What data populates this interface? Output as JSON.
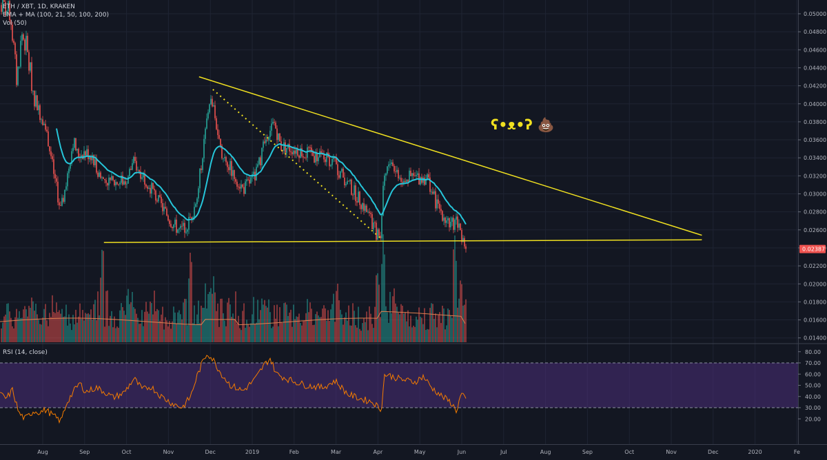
{
  "header": {
    "symbol_line": "ETH / XBT, 1D, KRAKEN",
    "indicator_line": "EMA + MA (100, 21, 50, 100, 200)",
    "volume_line": "Vol (50)"
  },
  "rsi_pane": {
    "label": "RSI (14, close)"
  },
  "annotation": {
    "text": "ʕ•ᴥ•ʔ 💩"
  },
  "colors": {
    "background": "#131722",
    "up": "#26a69a",
    "down": "#ef5350",
    "ema": "#26c6da",
    "trendline": "#f0e020",
    "rsi_line": "#f57c00",
    "rsi_band": "#4a2d78",
    "vol_ma": "#e08050",
    "price_badge": "#ef5350"
  },
  "chart_data": [
    {
      "type": "candlestick",
      "name": "price",
      "price_axis_ticks": [
        "0.05000",
        "0.04800",
        "0.04600",
        "0.04400",
        "0.04200",
        "0.04000",
        "0.03800",
        "0.03600",
        "0.03400",
        "0.03200",
        "0.03000",
        "0.02800",
        "0.02600",
        "0.02400",
        "0.02200",
        "0.02000",
        "0.01800",
        "0.01600",
        "0.01400"
      ],
      "ylim": [
        0.0132,
        0.0508
      ],
      "last_price": "0.02387",
      "time_axis_labels": [
        "Aug",
        "Sep",
        "Oct",
        "Nov",
        "Dec",
        "2019",
        "Feb",
        "Mar",
        "Apr",
        "May",
        "Jun",
        "Jul",
        "Aug",
        "Sep",
        "Oct",
        "Nov",
        "Dec",
        "2020",
        "Fe"
      ],
      "xlim_months": [
        0,
        18.35
      ],
      "anchors": [
        {
          "t": 0.0,
          "p": 0.051
        },
        {
          "t": 0.25,
          "p": 0.05
        },
        {
          "t": 0.4,
          "p": 0.0425
        },
        {
          "t": 0.52,
          "p": 0.0478
        },
        {
          "t": 0.62,
          "p": 0.0465
        },
        {
          "t": 0.8,
          "p": 0.0412
        },
        {
          "t": 1.0,
          "p": 0.0388
        },
        {
          "t": 1.15,
          "p": 0.036
        },
        {
          "t": 1.3,
          "p": 0.0318
        },
        {
          "t": 1.45,
          "p": 0.028
        },
        {
          "t": 1.6,
          "p": 0.0318
        },
        {
          "t": 1.75,
          "p": 0.036
        },
        {
          "t": 1.85,
          "p": 0.0343
        },
        {
          "t": 2.0,
          "p": 0.0346
        },
        {
          "t": 2.2,
          "p": 0.0343
        },
        {
          "t": 2.4,
          "p": 0.0318
        },
        {
          "t": 2.7,
          "p": 0.0312
        },
        {
          "t": 3.0,
          "p": 0.0315
        },
        {
          "t": 3.2,
          "p": 0.0335
        },
        {
          "t": 3.5,
          "p": 0.0315
        },
        {
          "t": 3.8,
          "p": 0.029
        },
        {
          "t": 4.1,
          "p": 0.0268
        },
        {
          "t": 4.3,
          "p": 0.0258
        },
        {
          "t": 4.5,
          "p": 0.0268
        },
        {
          "t": 4.7,
          "p": 0.0295
        },
        {
          "t": 4.85,
          "p": 0.035
        },
        {
          "t": 5.0,
          "p": 0.0405
        },
        {
          "t": 5.1,
          "p": 0.0395
        },
        {
          "t": 5.25,
          "p": 0.035
        },
        {
          "t": 5.5,
          "p": 0.0328
        },
        {
          "t": 5.8,
          "p": 0.0305
        },
        {
          "t": 6.1,
          "p": 0.032
        },
        {
          "t": 6.4,
          "p": 0.037
        },
        {
          "t": 6.55,
          "p": 0.0378
        },
        {
          "t": 6.7,
          "p": 0.0353
        },
        {
          "t": 7.0,
          "p": 0.035
        },
        {
          "t": 7.5,
          "p": 0.0342
        },
        {
          "t": 7.9,
          "p": 0.0338
        },
        {
          "t": 8.3,
          "p": 0.0312
        },
        {
          "t": 8.7,
          "p": 0.0285
        },
        {
          "t": 9.0,
          "p": 0.0255
        },
        {
          "t": 9.08,
          "p": 0.0252
        },
        {
          "t": 9.15,
          "p": 0.0318
        },
        {
          "t": 9.3,
          "p": 0.0335
        },
        {
          "t": 9.6,
          "p": 0.0318
        },
        {
          "t": 9.9,
          "p": 0.0318
        },
        {
          "t": 10.2,
          "p": 0.0318
        },
        {
          "t": 10.4,
          "p": 0.029
        },
        {
          "t": 10.6,
          "p": 0.0275
        },
        {
          "t": 10.75,
          "p": 0.0265
        },
        {
          "t": 10.9,
          "p": 0.027
        },
        {
          "t": 11.05,
          "p": 0.025
        },
        {
          "t": 11.15,
          "p": 0.0239
        }
      ]
    },
    {
      "type": "bar",
      "name": "volume",
      "pattern": {
        "base_share": 0.25,
        "spikes": [
          {
            "t": 0.85,
            "h": 0.35
          },
          {
            "t": 1.35,
            "h": 0.35
          },
          {
            "t": 2.45,
            "h": 0.92
          },
          {
            "t": 3.05,
            "h": 0.5
          },
          {
            "t": 3.6,
            "h": 0.4
          },
          {
            "t": 4.55,
            "h": 0.85
          },
          {
            "t": 4.9,
            "h": 0.4
          },
          {
            "t": 5.1,
            "h": 0.58
          },
          {
            "t": 5.45,
            "h": 0.42
          },
          {
            "t": 6.25,
            "h": 0.38
          },
          {
            "t": 7.4,
            "h": 0.35
          },
          {
            "t": 8.05,
            "h": 0.55
          },
          {
            "t": 9.0,
            "h": 0.62
          },
          {
            "t": 9.15,
            "h": 0.98
          },
          {
            "t": 9.4,
            "h": 0.5
          },
          {
            "t": 10.85,
            "h": 0.96
          },
          {
            "t": 11.0,
            "h": 0.6
          }
        ]
      }
    },
    {
      "type": "line",
      "name": "rsi",
      "rsi_axis_ticks": [
        "80.00",
        "70.00",
        "60.00",
        "50.00",
        "40.00",
        "30.00",
        "20.00"
      ],
      "ylim": [
        13,
        83
      ],
      "bands": [
        30,
        70
      ],
      "anchors": [
        {
          "t": 0.0,
          "v": 42
        },
        {
          "t": 0.15,
          "v": 38
        },
        {
          "t": 0.3,
          "v": 46
        },
        {
          "t": 0.45,
          "v": 25
        },
        {
          "t": 0.6,
          "v": 20
        },
        {
          "t": 0.8,
          "v": 27
        },
        {
          "t": 0.95,
          "v": 26
        },
        {
          "t": 1.1,
          "v": 28
        },
        {
          "t": 1.3,
          "v": 22
        },
        {
          "t": 1.45,
          "v": 18
        },
        {
          "t": 1.6,
          "v": 35
        },
        {
          "t": 1.75,
          "v": 44
        },
        {
          "t": 1.9,
          "v": 52
        },
        {
          "t": 2.05,
          "v": 44
        },
        {
          "t": 2.3,
          "v": 48
        },
        {
          "t": 2.5,
          "v": 44
        },
        {
          "t": 2.7,
          "v": 39
        },
        {
          "t": 2.95,
          "v": 43
        },
        {
          "t": 3.2,
          "v": 56
        },
        {
          "t": 3.4,
          "v": 46
        },
        {
          "t": 3.6,
          "v": 49
        },
        {
          "t": 3.85,
          "v": 40
        },
        {
          "t": 4.1,
          "v": 34
        },
        {
          "t": 4.35,
          "v": 30
        },
        {
          "t": 4.55,
          "v": 40
        },
        {
          "t": 4.7,
          "v": 58
        },
        {
          "t": 4.85,
          "v": 72
        },
        {
          "t": 4.95,
          "v": 79
        },
        {
          "t": 5.1,
          "v": 72
        },
        {
          "t": 5.25,
          "v": 62
        },
        {
          "t": 5.5,
          "v": 50
        },
        {
          "t": 5.8,
          "v": 45
        },
        {
          "t": 6.1,
          "v": 56
        },
        {
          "t": 6.3,
          "v": 68
        },
        {
          "t": 6.45,
          "v": 74
        },
        {
          "t": 6.6,
          "v": 60
        },
        {
          "t": 6.9,
          "v": 55
        },
        {
          "t": 7.3,
          "v": 50
        },
        {
          "t": 7.7,
          "v": 48
        },
        {
          "t": 8.0,
          "v": 54
        },
        {
          "t": 8.3,
          "v": 42
        },
        {
          "t": 8.6,
          "v": 38
        },
        {
          "t": 8.9,
          "v": 35
        },
        {
          "t": 9.1,
          "v": 28
        },
        {
          "t": 9.18,
          "v": 60
        },
        {
          "t": 9.35,
          "v": 58
        },
        {
          "t": 9.6,
          "v": 55
        },
        {
          "t": 9.9,
          "v": 53
        },
        {
          "t": 10.1,
          "v": 58
        },
        {
          "t": 10.3,
          "v": 48
        },
        {
          "t": 10.55,
          "v": 40
        },
        {
          "t": 10.75,
          "v": 35
        },
        {
          "t": 10.9,
          "v": 27
        },
        {
          "t": 11.0,
          "v": 42
        },
        {
          "t": 11.15,
          "v": 36
        }
      ]
    },
    {
      "type": "trendlines",
      "lines": [
        {
          "name": "descending-resistance",
          "from": {
            "t": 4.75,
            "p": 0.043
          },
          "to": {
            "t": 16.75,
            "p": 0.0254
          },
          "style": "solid"
        },
        {
          "name": "horizontal-support",
          "from": {
            "t": 2.48,
            "p": 0.0246
          },
          "to": {
            "t": 16.75,
            "p": 0.0249
          },
          "style": "solid"
        },
        {
          "name": "dotted-decline",
          "from": {
            "t": 5.08,
            "p": 0.0416
          },
          "to": {
            "t": 9.1,
            "p": 0.025
          },
          "style": "dotted"
        }
      ]
    }
  ]
}
